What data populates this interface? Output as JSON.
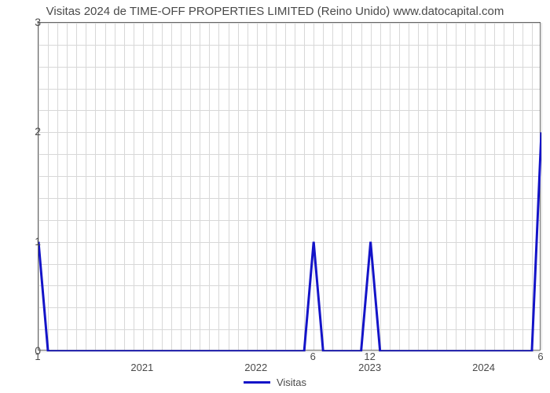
{
  "chart": {
    "type": "line",
    "title": "Visitas 2024 de TIME-OFF PROPERTIES LIMITED (Reino Unido) www.datocapital.com",
    "title_fontsize": 15,
    "title_color": "#4a4a4a",
    "background_color": "#ffffff",
    "plot_border_color": "#666666",
    "grid_color": "#d8d8d8",
    "axis_label_color": "#4a4a4a",
    "axis_label_fontsize": 14,
    "line_color": "#1414c8",
    "line_width": 3,
    "ylim": [
      0,
      3
    ],
    "yticks": [
      0,
      1,
      2,
      3
    ],
    "ygrid_minor_count": 4,
    "xlim_index": [
      0,
      53
    ],
    "year_ticks": [
      {
        "label": "2021",
        "index": 11
      },
      {
        "label": "2022",
        "index": 23
      },
      {
        "label": "2023",
        "index": 35
      },
      {
        "label": "2024",
        "index": 47
      }
    ],
    "xgrid_months_per_year": 12,
    "x_annotations": [
      {
        "text": "1",
        "index": 0
      },
      {
        "text": "6",
        "index": 29
      },
      {
        "text": "12",
        "index": 35
      },
      {
        "text": "6",
        "index": 53
      }
    ],
    "series": {
      "label": "Visitas",
      "y": [
        1,
        0,
        0,
        0,
        0,
        0,
        0,
        0,
        0,
        0,
        0,
        0,
        0,
        0,
        0,
        0,
        0,
        0,
        0,
        0,
        0,
        0,
        0,
        0,
        0,
        0,
        0,
        0,
        0,
        1,
        0,
        0,
        0,
        0,
        0,
        1,
        0,
        0,
        0,
        0,
        0,
        0,
        0,
        0,
        0,
        0,
        0,
        0,
        0,
        0,
        0,
        0,
        0,
        2
      ]
    },
    "legend": {
      "label": "Visitas",
      "swatch_color": "#1414c8"
    }
  }
}
